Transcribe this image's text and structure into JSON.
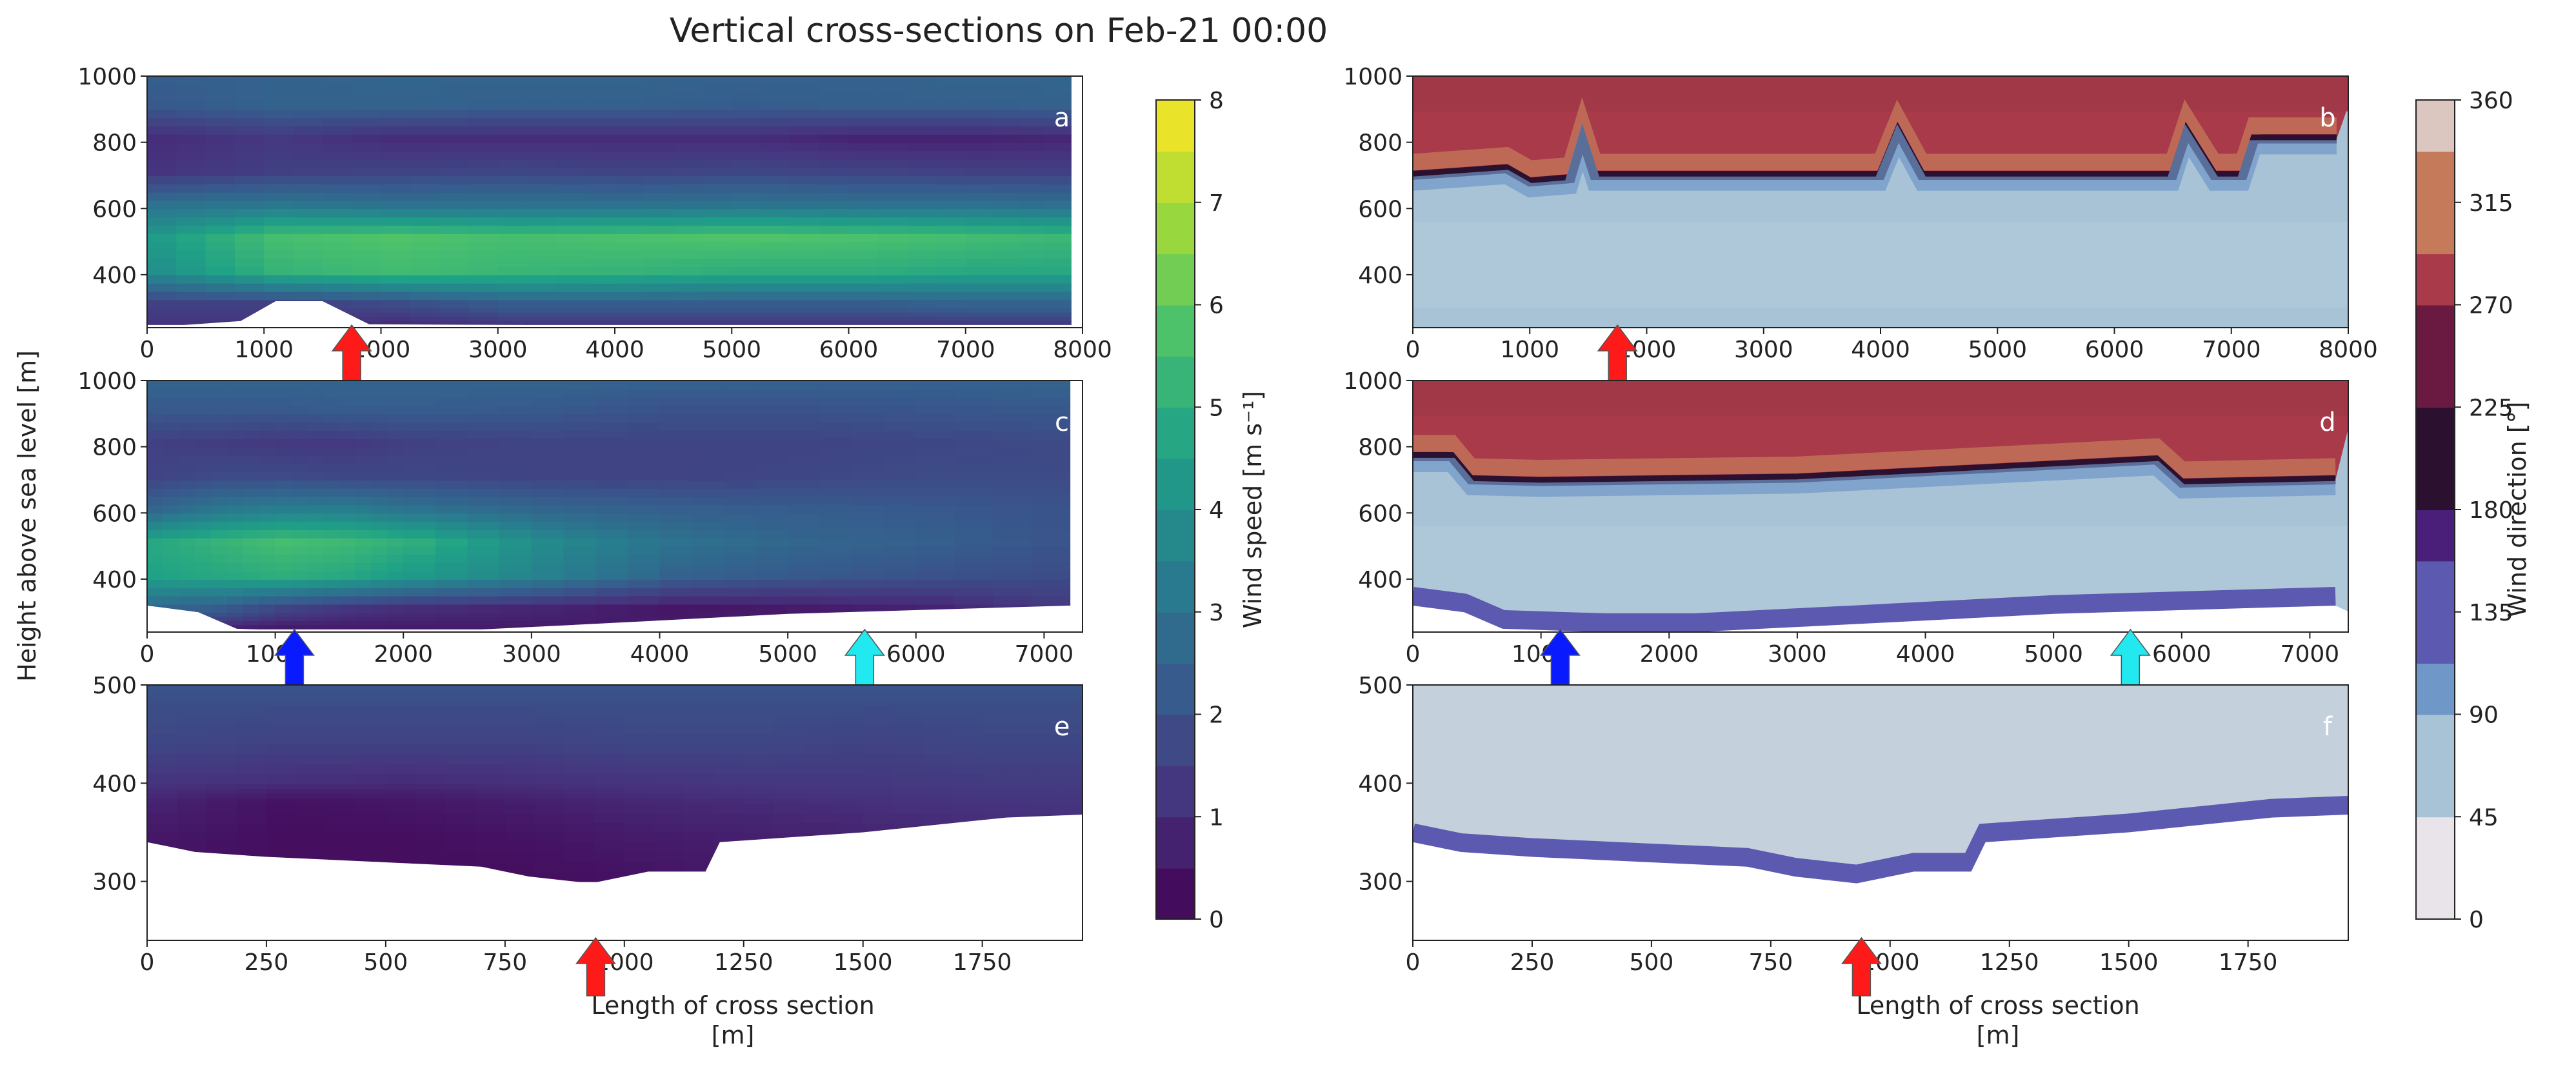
{
  "figure": {
    "title": "Vertical cross-sections on Feb-21 00:00",
    "shared_ylabel": "Height above sea level [m]",
    "shared_xlabel_line1": "Length of cross section",
    "shared_xlabel_line2": "[m]"
  },
  "colors": {
    "arrow_red": "#ff1a1a",
    "arrow_blue": "#0a1aff",
    "arrow_cyan": "#22e8f0",
    "speed_colormap": [
      "#440154",
      "#46337e",
      "#365c8d",
      "#277f8e",
      "#1fa187",
      "#4ac16d",
      "#a0da39",
      "#fde725"
    ],
    "direction_colormap": [
      "#e8e4ea",
      "#a9c3d6",
      "#6f97c8",
      "#5c59b0",
      "#4a1f7a",
      "#2b1030",
      "#6a1a40",
      "#a83a4a",
      "#c57a5a",
      "#dcc7c0"
    ]
  },
  "chart_data": [
    {
      "id": "a",
      "type": "heatmap",
      "variable": "Wind speed",
      "x": [
        0,
        1000,
        2000,
        3000,
        4000,
        5000,
        6000,
        7000,
        7900
      ],
      "y": [
        250,
        300,
        400,
        500,
        600,
        700,
        800,
        900,
        1000
      ],
      "z": [
        [
          1.2,
          1.2,
          1.0,
          1.3,
          1.3,
          1.3,
          1.3,
          1.4,
          1.4
        ],
        [
          1.5,
          1.5,
          1.8,
          2.3,
          2.3,
          2.3,
          2.3,
          2.5,
          2.5
        ],
        [
          4.0,
          5.2,
          5.5,
          5.3,
          5.2,
          5.0,
          5.0,
          4.8,
          4.8
        ],
        [
          4.4,
          5.6,
          5.8,
          5.6,
          5.7,
          5.8,
          5.7,
          5.5,
          5.3
        ],
        [
          3.0,
          3.2,
          3.0,
          3.0,
          3.0,
          3.1,
          3.0,
          3.0,
          2.9
        ],
        [
          1.2,
          1.5,
          1.6,
          1.7,
          1.6,
          1.7,
          1.6,
          1.5,
          1.5
        ],
        [
          1.0,
          1.3,
          1.0,
          1.0,
          1.0,
          1.0,
          0.8,
          0.8,
          0.9
        ],
        [
          2.2,
          2.5,
          2.5,
          2.4,
          2.4,
          2.3,
          2.4,
          2.4,
          2.5
        ],
        [
          2.4,
          2.5,
          2.6,
          2.6,
          2.6,
          2.5,
          2.5,
          2.6,
          2.6
        ]
      ],
      "terrain": [
        [
          0,
          240
        ],
        [
          800,
          260
        ],
        [
          1100,
          320
        ],
        [
          1500,
          320
        ],
        [
          1900,
          250
        ],
        [
          7900,
          240
        ]
      ],
      "xlim": [
        0,
        8000
      ],
      "ylim": [
        240,
        1000
      ],
      "xticks": [
        0,
        1000,
        2000,
        3000,
        4000,
        5000,
        6000,
        7000,
        8000
      ],
      "xtick_labels": [
        "0",
        "1000",
        "2000",
        "3000",
        "4000",
        "5000",
        "6000",
        "7000",
        "8000"
      ],
      "yticks": [
        400,
        600,
        800,
        1000
      ],
      "label": "a",
      "arrows": [
        {
          "x": 1750,
          "color": "red"
        }
      ]
    },
    {
      "id": "b",
      "type": "heatmap",
      "variable": "Wind direction",
      "xlim": [
        0,
        8000
      ],
      "ylim": [
        240,
        1000
      ],
      "xticks": [
        0,
        1000,
        2000,
        3000,
        4000,
        5000,
        6000,
        7000,
        8000
      ],
      "xtick_labels": [
        "0",
        "1000",
        "2000",
        "3000",
        "4000",
        "5000",
        "6000",
        "7000",
        "8000"
      ],
      "yticks": [
        400,
        600,
        800,
        1000
      ],
      "label": "b",
      "inversion_height": [
        [
          0,
          700
        ],
        [
          800,
          720
        ],
        [
          1000,
          680
        ],
        [
          1350,
          690
        ],
        [
          1450,
          810
        ],
        [
          1550,
          700
        ],
        [
          4000,
          700
        ],
        [
          4150,
          830
        ],
        [
          4350,
          700
        ],
        [
          6500,
          700
        ],
        [
          6620,
          830
        ],
        [
          6850,
          700
        ],
        [
          7100,
          700
        ],
        [
          7200,
          810
        ],
        [
          7900,
          810
        ]
      ],
      "arrows": [
        {
          "x": 1750,
          "color": "red"
        }
      ]
    },
    {
      "id": "c",
      "type": "heatmap",
      "variable": "Wind speed",
      "x": [
        0,
        500,
        1000,
        1500,
        2000,
        3000,
        4000,
        5000,
        6000,
        7200
      ],
      "y": [
        250,
        300,
        400,
        500,
        600,
        700,
        800,
        900,
        1000
      ],
      "z": [
        [
          1.0,
          0.8,
          0.6,
          0.6,
          0.6,
          0.6,
          0.6,
          0.6,
          0.6,
          1.0
        ],
        [
          2.6,
          2.3,
          1.6,
          1.2,
          1.0,
          0.8,
          0.5,
          0.6,
          0.8,
          1.4
        ],
        [
          4.6,
          4.8,
          5.0,
          4.8,
          4.3,
          3.5,
          2.5,
          2.2,
          2.0,
          1.8
        ],
        [
          4.8,
          5.2,
          5.6,
          5.4,
          5.0,
          3.8,
          3.0,
          2.6,
          2.4,
          2.0
        ],
        [
          2.6,
          3.2,
          3.4,
          3.4,
          3.0,
          2.6,
          2.4,
          2.3,
          2.2,
          2.0
        ],
        [
          1.6,
          1.8,
          1.8,
          1.7,
          1.7,
          1.6,
          1.6,
          1.7,
          1.8,
          1.8
        ],
        [
          1.5,
          1.4,
          1.3,
          1.3,
          1.5,
          1.6,
          1.6,
          1.6,
          1.7,
          1.8
        ],
        [
          2.2,
          2.2,
          2.2,
          2.3,
          2.3,
          2.2,
          2.0,
          2.0,
          2.1,
          2.2
        ],
        [
          2.6,
          2.6,
          2.6,
          2.6,
          2.6,
          2.6,
          2.5,
          2.5,
          2.5,
          2.6
        ]
      ],
      "terrain": [
        [
          0,
          320
        ],
        [
          400,
          300
        ],
        [
          700,
          250
        ],
        [
          1500,
          240
        ],
        [
          2200,
          240
        ],
        [
          3500,
          265
        ],
        [
          5000,
          295
        ],
        [
          7200,
          320
        ]
      ],
      "xlim": [
        0,
        7300
      ],
      "ylim": [
        240,
        1000
      ],
      "xticks": [
        0,
        1000,
        2000,
        3000,
        4000,
        5000,
        6000,
        7000
      ],
      "xtick_labels": [
        "0",
        "1000",
        "2000",
        "3000",
        "4000",
        "5000",
        "6000",
        "7000"
      ],
      "yticks": [
        400,
        600,
        800,
        1000
      ],
      "label": "c",
      "arrows": [
        {
          "x": 1150,
          "color": "blue"
        },
        {
          "x": 5600,
          "color": "cyan"
        }
      ]
    },
    {
      "id": "d",
      "type": "heatmap",
      "variable": "Wind direction",
      "xlim": [
        0,
        7300
      ],
      "ylim": [
        240,
        1000
      ],
      "xticks": [
        0,
        1000,
        2000,
        3000,
        4000,
        5000,
        6000,
        7000
      ],
      "xtick_labels": [
        "0",
        "1000",
        "2000",
        "3000",
        "4000",
        "5000",
        "6000",
        "7000"
      ],
      "yticks": [
        400,
        600,
        800,
        1000
      ],
      "label": "d",
      "inversion_height": [
        [
          0,
          770
        ],
        [
          300,
          770
        ],
        [
          450,
          700
        ],
        [
          1000,
          695
        ],
        [
          3000,
          705
        ],
        [
          5800,
          760
        ],
        [
          6000,
          690
        ],
        [
          7200,
          700
        ]
      ],
      "terrain": [
        [
          0,
          320
        ],
        [
          400,
          300
        ],
        [
          700,
          250
        ],
        [
          1500,
          240
        ],
        [
          2200,
          240
        ],
        [
          3500,
          265
        ],
        [
          5000,
          295
        ],
        [
          7200,
          320
        ]
      ],
      "arrows": [
        {
          "x": 1150,
          "color": "blue"
        },
        {
          "x": 5600,
          "color": "cyan"
        }
      ]
    },
    {
      "id": "e",
      "type": "heatmap",
      "variable": "Wind speed",
      "x": [
        0,
        250,
        500,
        750,
        1000,
        1250,
        1500,
        1750,
        1960
      ],
      "y": [
        300,
        340,
        380,
        400,
        440,
        480,
        500
      ],
      "z": [
        [
          0.4,
          0.3,
          0.3,
          0.3,
          0.4,
          0.6,
          0.8,
          0.8,
          1.0
        ],
        [
          0.5,
          0.3,
          0.3,
          0.4,
          0.6,
          0.7,
          0.8,
          0.9,
          1.0
        ],
        [
          0.8,
          0.4,
          0.5,
          0.7,
          0.9,
          1.0,
          1.1,
          1.2,
          1.2
        ],
        [
          1.2,
          1.1,
          1.0,
          1.1,
          1.2,
          1.3,
          1.3,
          1.4,
          1.4
        ],
        [
          1.7,
          1.6,
          1.6,
          1.6,
          1.7,
          1.7,
          1.6,
          1.7,
          1.7
        ],
        [
          1.9,
          1.9,
          1.9,
          1.9,
          1.9,
          1.9,
          1.9,
          1.9,
          1.9
        ],
        [
          2.1,
          2.1,
          2.1,
          2.1,
          2.1,
          2.1,
          2.1,
          2.1,
          2.1
        ]
      ],
      "terrain": [
        [
          0,
          340
        ],
        [
          100,
          330
        ],
        [
          250,
          325
        ],
        [
          700,
          315
        ],
        [
          800,
          305
        ],
        [
          930,
          298
        ],
        [
          1050,
          310
        ],
        [
          1170,
          310
        ],
        [
          1200,
          340
        ],
        [
          1500,
          350
        ],
        [
          1800,
          365
        ],
        [
          1960,
          368
        ]
      ],
      "xlim": [
        0,
        1960
      ],
      "ylim": [
        240,
        500
      ],
      "xticks": [
        0,
        250,
        500,
        750,
        1000,
        1250,
        1500,
        1750
      ],
      "xtick_labels": [
        "0",
        "250",
        "500",
        "750",
        "1000",
        "1250",
        "1500",
        "1750"
      ],
      "yticks": [
        300,
        400,
        500
      ],
      "label": "e",
      "arrows": [
        {
          "x": 940,
          "color": "red"
        }
      ]
    },
    {
      "id": "f",
      "type": "heatmap",
      "variable": "Wind direction",
      "xlim": [
        0,
        1960
      ],
      "ylim": [
        240,
        500
      ],
      "xticks": [
        0,
        250,
        500,
        750,
        1000,
        1250,
        1500,
        1750
      ],
      "xtick_labels": [
        "0",
        "250",
        "500",
        "750",
        "1000",
        "1250",
        "1500",
        "1750"
      ],
      "yticks": [
        300,
        400,
        500
      ],
      "label": "f",
      "terrain": [
        [
          0,
          340
        ],
        [
          100,
          330
        ],
        [
          250,
          325
        ],
        [
          700,
          315
        ],
        [
          800,
          305
        ],
        [
          930,
          298
        ],
        [
          1050,
          310
        ],
        [
          1170,
          310
        ],
        [
          1200,
          340
        ],
        [
          1500,
          350
        ],
        [
          1800,
          365
        ],
        [
          1960,
          368
        ]
      ],
      "arrows": [
        {
          "x": 940,
          "color": "red"
        }
      ]
    }
  ],
  "colorbars": [
    {
      "id": "speed",
      "label": "Wind speed [m s⁻¹]",
      "min": 0,
      "max": 8,
      "ticks": [
        0,
        1,
        2,
        3,
        4,
        5,
        6,
        7,
        8
      ],
      "tick_labels": [
        "0",
        "1",
        "2",
        "3",
        "4",
        "5",
        "6",
        "7",
        "8"
      ]
    },
    {
      "id": "direction",
      "label": "Wind direction [°]",
      "min": 0,
      "max": 360,
      "ticks": [
        0,
        45,
        90,
        135,
        180,
        225,
        270,
        315,
        360
      ],
      "tick_labels": [
        "0",
        "45",
        "90",
        "135",
        "180",
        "225",
        "270",
        "315",
        "360"
      ]
    }
  ]
}
